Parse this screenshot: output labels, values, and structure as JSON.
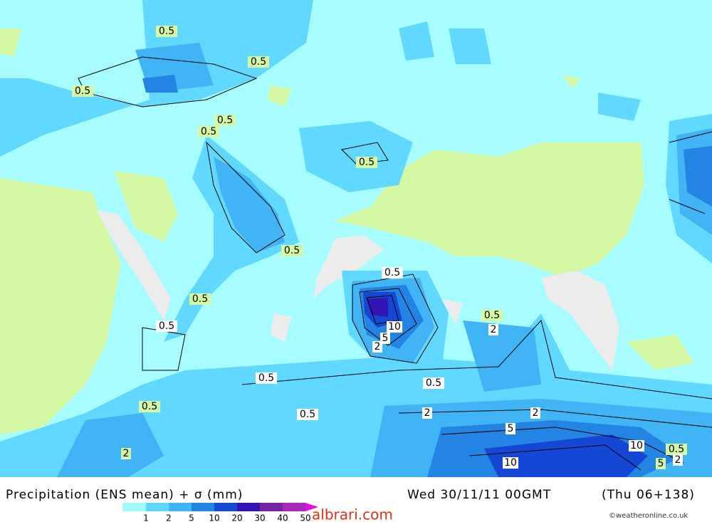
{
  "header": {
    "title": "Precipitation (ENS mean) + σ (mm)",
    "date": "Wed 30/11/11 00GMT",
    "forecast": "(Thu 06+138)"
  },
  "contour_labels": [
    0.5,
    0.5,
    0.5,
    0.5,
    0.5,
    0.5,
    0.5,
    0.5,
    0.5,
    0.5,
    0.5,
    2,
    10,
    5,
    2,
    0.5,
    0.5,
    0.5,
    2,
    2,
    0.5,
    5,
    2,
    10,
    0.5,
    10,
    5,
    2
  ],
  "legend": {
    "ticks": [
      1,
      2,
      5,
      10,
      20,
      30,
      40,
      50
    ],
    "colors": [
      "#a0fcff",
      "#60d8ff",
      "#40b4f4",
      "#2484e4",
      "#1448d4",
      "#3414b4",
      "#7424a4",
      "#a828b8",
      "#e010e0"
    ]
  },
  "copyright": "©weatheronline.co.uk",
  "watermark": "albrari.com"
}
